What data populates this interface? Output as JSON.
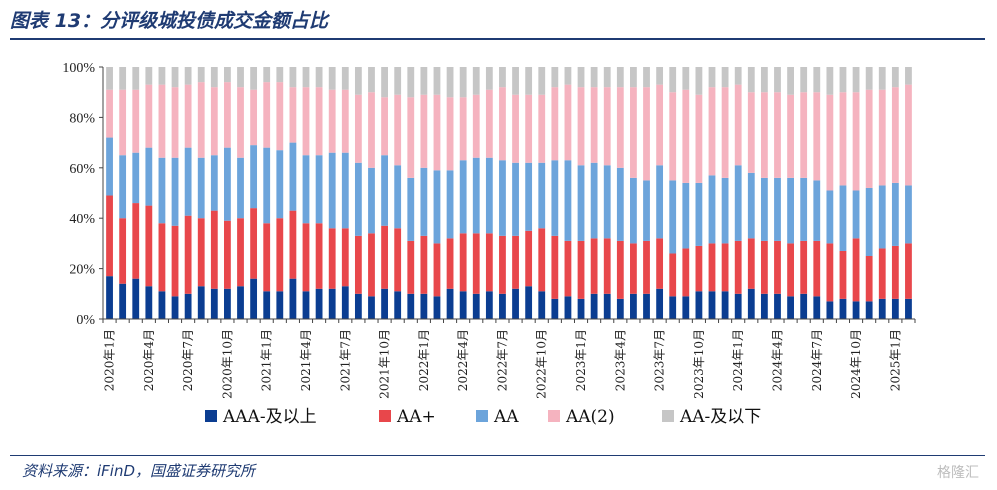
{
  "header": {
    "title": "图表 13：分评级城投债成交金额占比"
  },
  "footer": {
    "source": "资料来源：iFinD，国盛证券研究所",
    "watermark": "格隆汇"
  },
  "chart_data": {
    "type": "bar",
    "stacked": true,
    "title": "",
    "xlabel": "",
    "ylabel": "",
    "ylim": [
      0,
      100
    ],
    "y_ticks": [
      "0%",
      "20%",
      "40%",
      "60%",
      "80%",
      "100%"
    ],
    "grid": false,
    "legend_position": "bottom",
    "months": [
      "2020-01",
      "2020-02",
      "2020-03",
      "2020-04",
      "2020-05",
      "2020-06",
      "2020-07",
      "2020-08",
      "2020-09",
      "2020-10",
      "2020-11",
      "2020-12",
      "2021-01",
      "2021-02",
      "2021-03",
      "2021-04",
      "2021-05",
      "2021-06",
      "2021-07",
      "2021-08",
      "2021-09",
      "2021-10",
      "2021-11",
      "2021-12",
      "2022-01",
      "2022-02",
      "2022-03",
      "2022-04",
      "2022-05",
      "2022-06",
      "2022-07",
      "2022-08",
      "2022-09",
      "2022-10",
      "2022-11",
      "2022-12",
      "2023-01",
      "2023-02",
      "2023-03",
      "2023-04",
      "2023-05",
      "2023-06",
      "2023-07",
      "2023-08",
      "2023-09",
      "2023-10",
      "2023-11",
      "2023-12",
      "2024-01",
      "2024-02",
      "2024-03",
      "2024-04",
      "2024-05",
      "2024-06",
      "2024-07",
      "2024-08",
      "2024-09",
      "2024-10",
      "2024-11",
      "2024-12",
      "2025-01",
      "2025-02"
    ],
    "x_tick_labels": [
      "2020年1月",
      "2020年4月",
      "2020年7月",
      "2020年10月",
      "2021年1月",
      "2021年4月",
      "2021年7月",
      "2021年10月",
      "2022年1月",
      "2022年4月",
      "2022年7月",
      "2022年10月",
      "2023年1月",
      "2023年4月",
      "2023年7月",
      "2023年10月",
      "2024年1月",
      "2024年4月",
      "2024年7月",
      "2024年10月",
      "2025年1月"
    ],
    "series": [
      {
        "name": "AAA-及以上",
        "color": "#0b3d91",
        "values": [
          17,
          14,
          16,
          13,
          11,
          9,
          10,
          13,
          12,
          12,
          13,
          16,
          11,
          11,
          16,
          11,
          12,
          12,
          13,
          10,
          9,
          12,
          11,
          10,
          10,
          9,
          12,
          11,
          10,
          11,
          10,
          12,
          13,
          11,
          8,
          9,
          8,
          10,
          10,
          8,
          10,
          10,
          12,
          9,
          9,
          11,
          11,
          11,
          10,
          12,
          10,
          10,
          9,
          10,
          9,
          7,
          8,
          7,
          7,
          8,
          8,
          8
        ]
      },
      {
        "name": "AA+",
        "color": "#e8474b",
        "values": [
          32,
          26,
          30,
          32,
          27,
          28,
          31,
          27,
          31,
          27,
          27,
          28,
          27,
          29,
          27,
          27,
          26,
          24,
          23,
          23,
          25,
          25,
          25,
          21,
          23,
          21,
          20,
          23,
          24,
          23,
          23,
          21,
          22,
          25,
          25,
          22,
          23,
          22,
          22,
          23,
          20,
          21,
          20,
          17,
          19,
          18,
          19,
          19,
          21,
          20,
          21,
          21,
          21,
          21,
          22,
          23,
          19,
          25,
          18,
          20,
          21,
          22
        ]
      },
      {
        "name": "AA",
        "color": "#6ca4db",
        "values": [
          23,
          25,
          20,
          23,
          26,
          27,
          27,
          24,
          22,
          29,
          24,
          25,
          30,
          27,
          27,
          27,
          27,
          30,
          30,
          29,
          26,
          28,
          25,
          25,
          27,
          29,
          27,
          29,
          30,
          30,
          30,
          29,
          27,
          26,
          30,
          32,
          30,
          30,
          29,
          29,
          26,
          24,
          29,
          29,
          26,
          25,
          27,
          26,
          30,
          26,
          25,
          25,
          26,
          25,
          24,
          21,
          26,
          19,
          27,
          25,
          25,
          23
        ]
      },
      {
        "name": "AA(2)",
        "color": "#f5b3bf",
        "values": [
          19,
          26,
          25,
          25,
          29,
          28,
          25,
          30,
          27,
          26,
          28,
          22,
          26,
          27,
          22,
          27,
          27,
          25,
          25,
          27,
          30,
          23,
          28,
          32,
          29,
          30,
          29,
          25,
          25,
          27,
          29,
          27,
          27,
          27,
          29,
          30,
          31,
          30,
          31,
          32,
          36,
          37,
          32,
          35,
          37,
          35,
          35,
          36,
          32,
          32,
          34,
          34,
          33,
          34,
          35,
          38,
          37,
          39,
          39,
          38,
          38,
          40
        ]
      },
      {
        "name": "AA-及以下",
        "color": "#c6c6c6",
        "values": [
          9,
          9,
          9,
          7,
          7,
          8,
          7,
          6,
          8,
          6,
          8,
          9,
          6,
          6,
          8,
          8,
          8,
          9,
          9,
          11,
          10,
          12,
          11,
          12,
          11,
          11,
          12,
          12,
          11,
          9,
          8,
          11,
          11,
          11,
          8,
          7,
          8,
          8,
          8,
          8,
          8,
          8,
          7,
          10,
          9,
          11,
          8,
          8,
          7,
          10,
          10,
          10,
          11,
          10,
          10,
          11,
          10,
          10,
          9,
          9,
          8,
          7
        ]
      }
    ]
  }
}
